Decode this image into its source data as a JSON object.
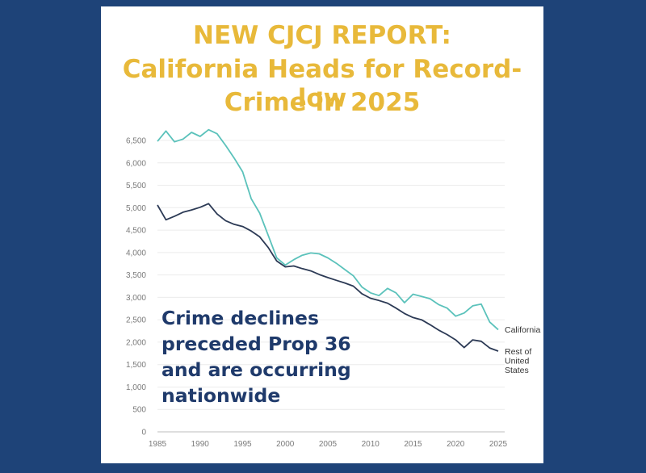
{
  "header": {
    "title_line1": "NEW CJCJ REPORT:",
    "title_line2": "California Heads for Record-low",
    "title_line3": "Crime in 2025"
  },
  "annotation": {
    "line1": "Crime declines",
    "line2": "preceded Prop 36",
    "line3": "and are occurring",
    "line4": "nationwide"
  },
  "colors": {
    "background": "#1e4378",
    "title": "#e8b93a",
    "california": "#5bc2bb",
    "rest_of_us": "#2c3a55",
    "annotation": "#1f3a6b"
  },
  "chart_data": {
    "type": "line",
    "title": "California Heads for Record-low Crime in 2025",
    "xlabel": "",
    "ylabel": "",
    "xlim": [
      1985,
      2025
    ],
    "ylim": [
      0,
      6500
    ],
    "grid": true,
    "x_ticks": [
      1985,
      1990,
      1995,
      2000,
      2005,
      2010,
      2015,
      2020,
      2025
    ],
    "y_ticks": [
      0,
      500,
      1000,
      1500,
      2000,
      2500,
      3000,
      3500,
      4000,
      4500,
      5000,
      5500,
      6000,
      6500
    ],
    "y_tick_labels": [
      "0",
      "500",
      "1,000",
      "1,500",
      "2,000",
      "2,500",
      "3,000",
      "3,500",
      "4,000",
      "4,500",
      "5,000",
      "5,500",
      "6,000",
      "6,500"
    ],
    "x": [
      1985,
      1986,
      1987,
      1988,
      1989,
      1990,
      1991,
      1992,
      1993,
      1994,
      1995,
      1996,
      1997,
      1998,
      1999,
      2000,
      2001,
      2002,
      2003,
      2004,
      2005,
      2006,
      2007,
      2008,
      2009,
      2010,
      2011,
      2012,
      2013,
      2014,
      2015,
      2016,
      2017,
      2018,
      2019,
      2020,
      2021,
      2022,
      2023,
      2024,
      2025
    ],
    "series": [
      {
        "name": "California",
        "label_lines": [
          "California"
        ],
        "values": [
          6480,
          6710,
          6470,
          6530,
          6680,
          6590,
          6740,
          6650,
          6390,
          6110,
          5800,
          5200,
          4880,
          4380,
          3880,
          3720,
          3840,
          3940,
          3990,
          3970,
          3880,
          3760,
          3620,
          3480,
          3230,
          3100,
          3040,
          3200,
          3100,
          2880,
          3070,
          3020,
          2970,
          2840,
          2760,
          2580,
          2650,
          2810,
          2850,
          2450,
          2280
        ]
      },
      {
        "name": "Rest of United States",
        "label_lines": [
          "Rest of",
          "United",
          "States"
        ],
        "values": [
          5060,
          4730,
          4810,
          4900,
          4950,
          5010,
          5090,
          4860,
          4710,
          4630,
          4580,
          4480,
          4350,
          4110,
          3810,
          3680,
          3700,
          3640,
          3590,
          3510,
          3440,
          3380,
          3320,
          3250,
          3080,
          2980,
          2930,
          2870,
          2760,
          2640,
          2550,
          2500,
          2390,
          2270,
          2170,
          2050,
          1880,
          2050,
          2020,
          1870,
          1800
        ]
      }
    ]
  }
}
